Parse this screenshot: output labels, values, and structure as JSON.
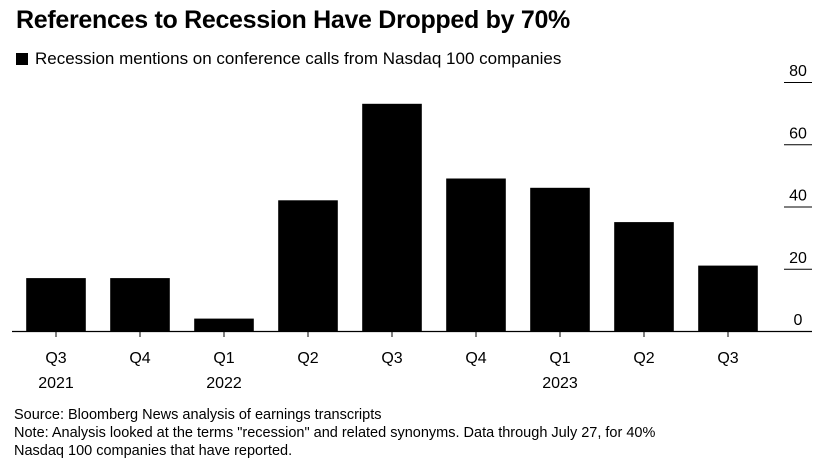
{
  "title": "References to Recession Have Dropped by 70%",
  "legend_label": "Recession mentions on conference calls from Nasdaq 100 companies",
  "source": "Source: Bloomberg News analysis of earnings transcripts",
  "note_line1": "Note: Analysis looked at the terms \"recession\" and related synonyms. Data through July 27, for 40%",
  "note_line2": "Nasdaq 100 companies that have reported.",
  "chart_data": {
    "type": "bar",
    "title": "References to Recession Have Dropped by 70%",
    "categories": [
      "Q3 2021",
      "Q4 2021",
      "Q1 2022",
      "Q2 2022",
      "Q3 2022",
      "Q4 2022",
      "Q1 2023",
      "Q2 2023",
      "Q3 2023"
    ],
    "x_tick_labels": [
      {
        "quarter": "Q3",
        "year": "2021"
      },
      {
        "quarter": "Q4",
        "year": ""
      },
      {
        "quarter": "Q1",
        "year": "2022"
      },
      {
        "quarter": "Q2",
        "year": ""
      },
      {
        "quarter": "Q3",
        "year": ""
      },
      {
        "quarter": "Q4",
        "year": ""
      },
      {
        "quarter": "Q1",
        "year": "2023"
      },
      {
        "quarter": "Q2",
        "year": ""
      },
      {
        "quarter": "Q3",
        "year": ""
      }
    ],
    "series": [
      {
        "name": "Recession mentions on conference calls from Nasdaq 100 companies",
        "values": [
          17,
          17,
          4,
          42,
          73,
          49,
          46,
          35,
          21
        ]
      }
    ],
    "ylim": [
      0,
      80
    ],
    "yticks": [
      0,
      20,
      40,
      60,
      80
    ],
    "y_axis_position": "right",
    "grid": false,
    "bar_color": "#000000",
    "legend_position": "top-left"
  }
}
